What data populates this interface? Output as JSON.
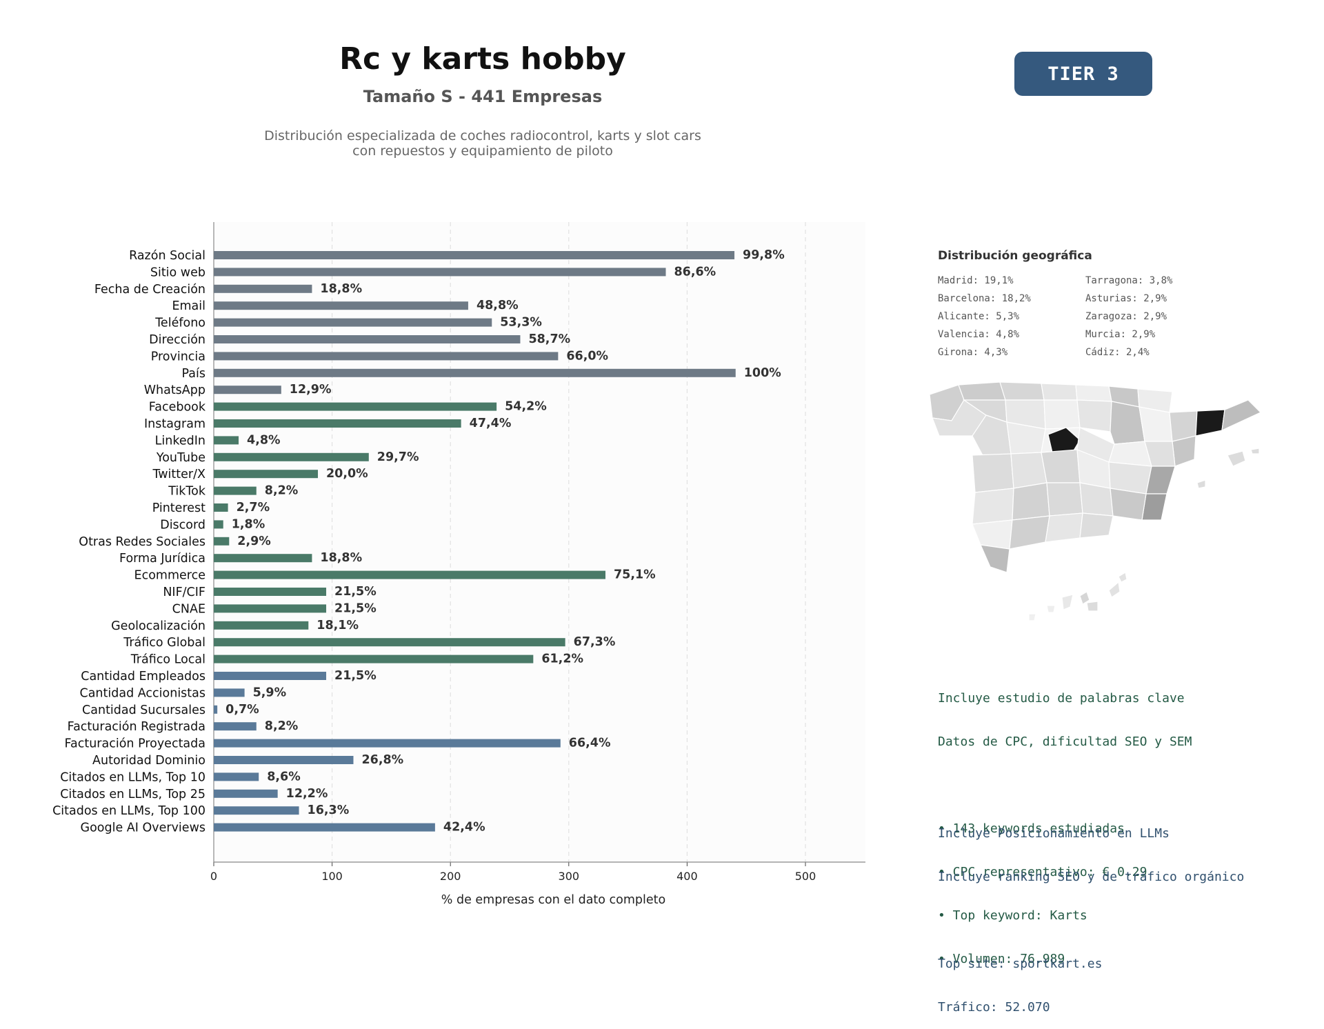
{
  "header": {
    "title": "Rc y karts hobby",
    "subtitle": "Tamaño S - 441 Empresas",
    "description_lines": [
      "Distribución especializada de coches radiocontrol, karts y slot cars",
      "con repuestos y equipamiento de piloto"
    ],
    "tier_badge": "TIER 3"
  },
  "colors": {
    "group_basic": "#6e7a86",
    "group_social": "#4a7a68",
    "group_business": "#5a7a99",
    "tier_badge": "#35597e",
    "map_highlight": "#1a1a1a"
  },
  "chart_data": {
    "type": "bar",
    "orientation": "horizontal",
    "xlabel": "% de empresas con el dato completo",
    "xlim": [
      0,
      550
    ],
    "xticks": [
      0,
      100,
      200,
      300,
      400,
      500
    ],
    "grid": "vertical dashed",
    "value_label_format": "{v}%",
    "categories": [
      "Razón Social",
      "Sitio web",
      "Fecha de Creación",
      "Email",
      "Teléfono",
      "Dirección",
      "Provincia",
      "País",
      "WhatsApp",
      "Facebook",
      "Instagram",
      "LinkedIn",
      "YouTube",
      "Twitter/X",
      "TikTok",
      "Pinterest",
      "Discord",
      "Otras Redes Sociales",
      "Forma Jurídica",
      "Ecommerce",
      "NIF/CIF",
      "CNAE",
      "Geolocalización",
      "Tráfico Global",
      "Tráfico Local",
      "Cantidad Empleados",
      "Cantidad Accionistas",
      "Cantidad Sucursales",
      "Facturación Registrada",
      "Facturación Proyectada",
      "Autoridad Dominio",
      "Citados en LLMs, Top 10",
      "Citados en LLMs, Top 25",
      "Citados en LLMs, Top 100",
      "Google AI Overviews"
    ],
    "values": [
      440,
      382,
      83,
      215,
      235,
      259,
      291,
      441,
      57,
      239,
      209,
      21,
      131,
      88,
      36,
      12,
      8,
      13,
      83,
      331,
      95,
      95,
      80,
      297,
      270,
      95,
      26,
      3,
      36,
      293,
      118,
      38,
      54,
      72,
      187
    ],
    "value_labels": [
      "99,8%",
      "86,6%",
      "18,8%",
      "48,8%",
      "53,3%",
      "58,7%",
      "66,0%",
      "100%",
      "12,9%",
      "54,2%",
      "47,4%",
      "4,8%",
      "29,7%",
      "20,0%",
      "8,2%",
      "2,7%",
      "1,8%",
      "2,9%",
      "18,8%",
      "75,1%",
      "21,5%",
      "21,5%",
      "18,1%",
      "67,3%",
      "61,2%",
      "21,5%",
      "5,9%",
      "0,7%",
      "8,2%",
      "66,4%",
      "26,8%",
      "8,6%",
      "12,2%",
      "16,3%",
      "42,4%"
    ],
    "groups": [
      "basic",
      "basic",
      "basic",
      "basic",
      "basic",
      "basic",
      "basic",
      "basic",
      "basic",
      "social",
      "social",
      "social",
      "social",
      "social",
      "social",
      "social",
      "social",
      "social",
      "social",
      "social",
      "social",
      "social",
      "social",
      "social",
      "social",
      "business",
      "business",
      "business",
      "business",
      "business",
      "business",
      "business",
      "business",
      "business",
      "business"
    ]
  },
  "geo": {
    "title": "Distribución geográfica",
    "items": [
      "Madrid: 19,1%",
      "Tarragona: 3,8%",
      "Barcelona: 18,2%",
      "Asturias: 2,9%",
      "Alicante: 5,3%",
      "Zaragoza: 2,9%",
      "Valencia: 4,8%",
      "Murcia: 2,9%",
      "Girona: 4,3%",
      "Cádiz: 2,4%"
    ]
  },
  "seo_info": {
    "lines": [
      "Incluye estudio de palabras clave",
      "Datos de CPC, dificultad SEO y SEM",
      "",
      "• 143 keywords estudiadas",
      "• CPC representativo: € 0.29",
      "• Top keyword: Karts",
      "• Volumen: 76.989"
    ]
  },
  "llm_info": {
    "lines": [
      "Incluye Posicionamiento en LLMs",
      "Incluye ranking SEO y de tráfico orgánico",
      "",
      "Top site: sportkart.es",
      "Tráfico: 52.070"
    ]
  }
}
